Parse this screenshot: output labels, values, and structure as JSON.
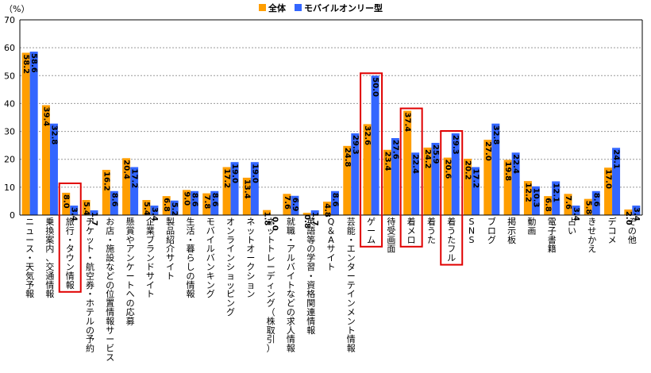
{
  "chart_data": {
    "type": "bar",
    "unit_label": "（%）",
    "ylim": [
      0,
      70
    ],
    "yticks": [
      0,
      10,
      20,
      30,
      40,
      50,
      60,
      70
    ],
    "grid": true,
    "legend_position": "top-center",
    "colors": {
      "overall": "#ff9e00",
      "mobile_only": "#3366ff",
      "highlight": "#e00000",
      "grid": "#999999"
    },
    "categories": [
      "ニュース・天気予報",
      "乗換案内、交通情報",
      "旅行・タウン情報",
      "チケット・航空券・ホテルの予約",
      "お店・施設などの位置情報サービス",
      "懸賞やアンケートへの応募",
      "企業ブランドサイト",
      "製品紹介サイト",
      "生活・暮らしの情報",
      "モバイルバンキング",
      "オンラインショッピング",
      "ネットオークション",
      "ネットトレーディング（株取引）",
      "就職・アルバイトなどの求人情報",
      "英語等の学習・資格関連情報",
      "Q＆Aサイト",
      "芸能・エンターテインメント情報",
      "ゲーム",
      "待受画面",
      "着メロ",
      "着うた",
      "着うたフル",
      "SNS",
      "ブログ",
      "掲示板",
      "動画",
      "電子書籍",
      "占い",
      "きせかえ",
      "デコメ",
      "その他"
    ],
    "series": [
      {
        "name": "全体",
        "values": [
          58.2,
          39.4,
          8.0,
          5.4,
          16.2,
          20.4,
          5.4,
          6.8,
          9.0,
          7.8,
          17.2,
          13.4,
          1.8,
          7.6,
          0.8,
          4.8,
          24.8,
          32.6,
          23.4,
          37.4,
          24.2,
          20.6,
          20.2,
          27.0,
          19.8,
          12.2,
          6.8,
          7.6,
          5.8,
          17.0,
          2.0
        ],
        "labels": [
          "58.2",
          "39.4",
          "8.0",
          "5.4",
          "16.2",
          "20.4",
          "5.4",
          "6.8",
          "9.0",
          "7.8",
          "17.2",
          "13.4",
          "1.8",
          "7.6",
          "0.8",
          "4.8",
          "24.8",
          "32.6",
          "23.4",
          "37.4",
          "24.2",
          "20.6",
          "20.2",
          "27.0",
          "19.8",
          "12.2",
          "6.8",
          "7.6",
          "5.8",
          "17.0",
          "2.0"
        ]
      },
      {
        "name": "モバイルオンリー型",
        "values": [
          58.6,
          32.8,
          3.4,
          1.7,
          8.6,
          17.2,
          3.4,
          5.2,
          8.6,
          8.6,
          19.0,
          19.0,
          0.0,
          6.9,
          1.7,
          8.6,
          29.3,
          50.0,
          27.6,
          22.4,
          25.9,
          29.3,
          17.2,
          32.8,
          22.4,
          10.3,
          12.1,
          3.4,
          8.6,
          24.1,
          3.4
        ],
        "labels": [
          "58.6",
          "32.8",
          "3.4",
          "1.7",
          "8.6",
          "17.2",
          "3.4",
          "5.2",
          "8.6",
          "8.6",
          "19.0",
          "19.0",
          "0.0",
          "6.9",
          "1.7",
          "8.6",
          "29.3",
          "50.0",
          "27.6",
          "22.4",
          "25.9",
          "29.3",
          "17.2",
          "32.8",
          "22.4",
          "10.3",
          "12.1",
          "3.4",
          "8.6",
          "24.1",
          "3.4"
        ]
      }
    ],
    "highlighted_categories": [
      "旅行・タウン情報",
      "ゲーム",
      "着メロ",
      "着うたフル"
    ]
  }
}
